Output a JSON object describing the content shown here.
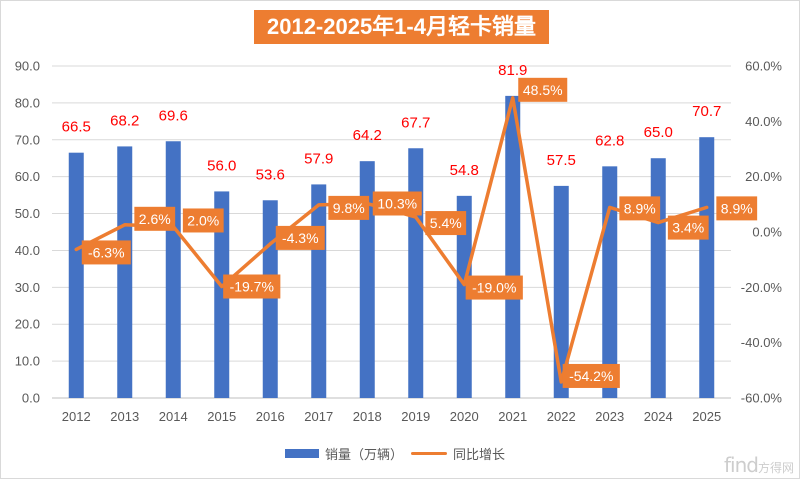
{
  "chart_data": {
    "type": "bar",
    "combo_with": "line",
    "title": "2012-2025年1-4月轻卡销量",
    "categories": [
      "2012",
      "2013",
      "2014",
      "2015",
      "2016",
      "2017",
      "2018",
      "2019",
      "2020",
      "2021",
      "2022",
      "2023",
      "2024",
      "2025"
    ],
    "series": [
      {
        "name": "销量（万辆）",
        "type": "bar",
        "axis": "left",
        "color": "#4472c4",
        "values": [
          66.5,
          68.2,
          69.6,
          56.0,
          53.6,
          57.9,
          64.2,
          67.7,
          54.8,
          81.9,
          57.5,
          62.8,
          65.0,
          70.7
        ],
        "labels": [
          "66.5",
          "68.2",
          "69.6",
          "56.0",
          "53.6",
          "57.9",
          "64.2",
          "67.7",
          "54.8",
          "81.9",
          "57.5",
          "62.8",
          "65.0",
          "70.7"
        ],
        "label_color": "#ff0000"
      },
      {
        "name": "同比增长",
        "type": "line",
        "axis": "right",
        "color": "#ed7d31",
        "values": [
          -6.3,
          2.6,
          2.0,
          -19.7,
          -4.3,
          9.8,
          10.3,
          5.4,
          -19.0,
          48.5,
          -54.2,
          8.9,
          3.4,
          8.9
        ],
        "labels": [
          "-6.3%",
          "2.6%",
          "2.0%",
          "-19.7%",
          "-4.3%",
          "9.8%",
          "10.3%",
          "5.4%",
          "-19.0%",
          "48.5%",
          "-54.2%",
          "8.9%",
          "3.4%",
          "8.9%"
        ],
        "label_fill": "#ed7d31",
        "label_color": "#ffffff"
      }
    ],
    "left_axis": {
      "ylim": [
        0,
        90
      ],
      "ticks": [
        0,
        10,
        20,
        30,
        40,
        50,
        60,
        70,
        80,
        90
      ],
      "tick_labels": [
        "0.0",
        "10.0",
        "20.0",
        "30.0",
        "40.0",
        "50.0",
        "60.0",
        "70.0",
        "80.0",
        "90.0"
      ]
    },
    "right_axis": {
      "ylim": [
        -60,
        60
      ],
      "ticks": [
        -60,
        -40,
        -20,
        0,
        20,
        40,
        60
      ],
      "tick_labels": [
        "-60.0%",
        "-40.0%",
        "-20.0%",
        "0.0%",
        "20.0%",
        "40.0%",
        "60.0%"
      ]
    },
    "xlabel": "",
    "ylabel": "",
    "grid": true,
    "legend_position": "bottom"
  },
  "legend": {
    "items": [
      {
        "label": "销量（万辆）",
        "color": "#4472c4",
        "kind": "bar"
      },
      {
        "label": "同比增长",
        "color": "#ed7d31",
        "kind": "line"
      }
    ]
  },
  "watermark": {
    "text_latin": "find",
    "text_cn": "方得网"
  }
}
